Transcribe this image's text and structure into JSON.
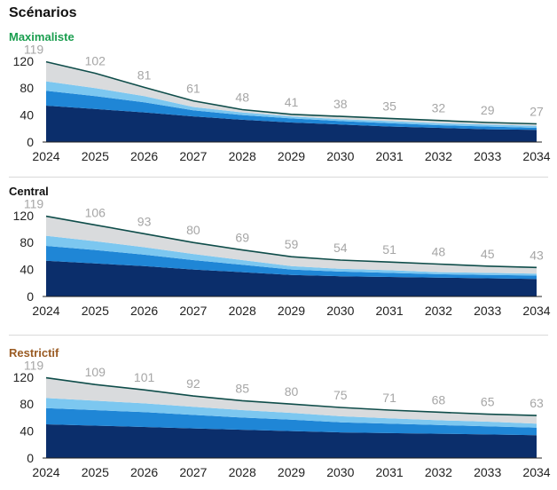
{
  "title": "Scénarios",
  "colors": {
    "seg1": "#0b2e6b",
    "seg2": "#1f86d6",
    "seg3": "#7cc7f0",
    "seg4": "#d9dbdd",
    "topline": "#0f4d4a",
    "total_label": "#a6a6a6"
  },
  "chart_data": [
    {
      "type": "area",
      "title": "Maximaliste",
      "title_color": "#1a9e4f",
      "x": [
        2024,
        2025,
        2026,
        2027,
        2028,
        2029,
        2030,
        2031,
        2032,
        2033,
        2034
      ],
      "totals": [
        119,
        102,
        81,
        61,
        48,
        41,
        38,
        35,
        32,
        29,
        27
      ],
      "y_ticks": [
        0,
        40,
        80,
        120
      ],
      "ylim": [
        0,
        125
      ],
      "stacked": true,
      "series": [
        {
          "values": [
            54,
            49,
            44,
            38,
            33,
            29,
            26,
            23,
            21,
            19,
            18
          ]
        },
        {
          "values": [
            22,
            19,
            15,
            9,
            7,
            6,
            5,
            5,
            4,
            4,
            3
          ]
        },
        {
          "values": [
            14,
            12,
            9,
            5,
            4,
            3,
            3,
            3,
            3,
            3,
            3
          ]
        },
        {
          "values": [
            29,
            22,
            13,
            9,
            4,
            3,
            4,
            4,
            4,
            3,
            3
          ]
        }
      ]
    },
    {
      "type": "area",
      "title": "Central",
      "title_color": "#111111",
      "x": [
        2024,
        2025,
        2026,
        2027,
        2028,
        2029,
        2030,
        2031,
        2032,
        2033,
        2034
      ],
      "totals": [
        119,
        106,
        93,
        80,
        69,
        59,
        54,
        51,
        48,
        45,
        43
      ],
      "y_ticks": [
        0,
        40,
        80,
        120
      ],
      "ylim": [
        0,
        125
      ],
      "stacked": true,
      "series": [
        {
          "values": [
            53,
            49,
            45,
            40,
            36,
            32,
            30,
            29,
            28,
            27,
            26
          ]
        },
        {
          "values": [
            22,
            20,
            17,
            14,
            11,
            8,
            7,
            6,
            5,
            5,
            5
          ]
        },
        {
          "values": [
            15,
            13,
            11,
            9,
            7,
            5,
            4,
            4,
            3,
            3,
            3
          ]
        },
        {
          "values": [
            29,
            24,
            20,
            17,
            15,
            14,
            13,
            12,
            12,
            10,
            9
          ]
        }
      ]
    },
    {
      "type": "area",
      "title": "Restrictif",
      "title_color": "#9a5b23",
      "x": [
        2024,
        2025,
        2026,
        2027,
        2028,
        2029,
        2030,
        2031,
        2032,
        2033,
        2034
      ],
      "totals": [
        119,
        109,
        101,
        92,
        85,
        80,
        75,
        71,
        68,
        65,
        63
      ],
      "y_ticks": [
        0,
        40,
        80,
        120
      ],
      "ylim": [
        0,
        125
      ],
      "stacked": true,
      "series": [
        {
          "values": [
            50,
            48,
            46,
            44,
            42,
            40,
            38,
            37,
            36,
            35,
            34
          ]
        },
        {
          "values": [
            24,
            23,
            22,
            20,
            18,
            17,
            15,
            14,
            13,
            12,
            11
          ]
        },
        {
          "values": [
            15,
            14,
            13,
            12,
            11,
            10,
            9,
            8,
            7,
            7,
            6
          ]
        },
        {
          "values": [
            30,
            24,
            20,
            16,
            14,
            13,
            13,
            12,
            12,
            11,
            12
          ]
        }
      ]
    }
  ]
}
